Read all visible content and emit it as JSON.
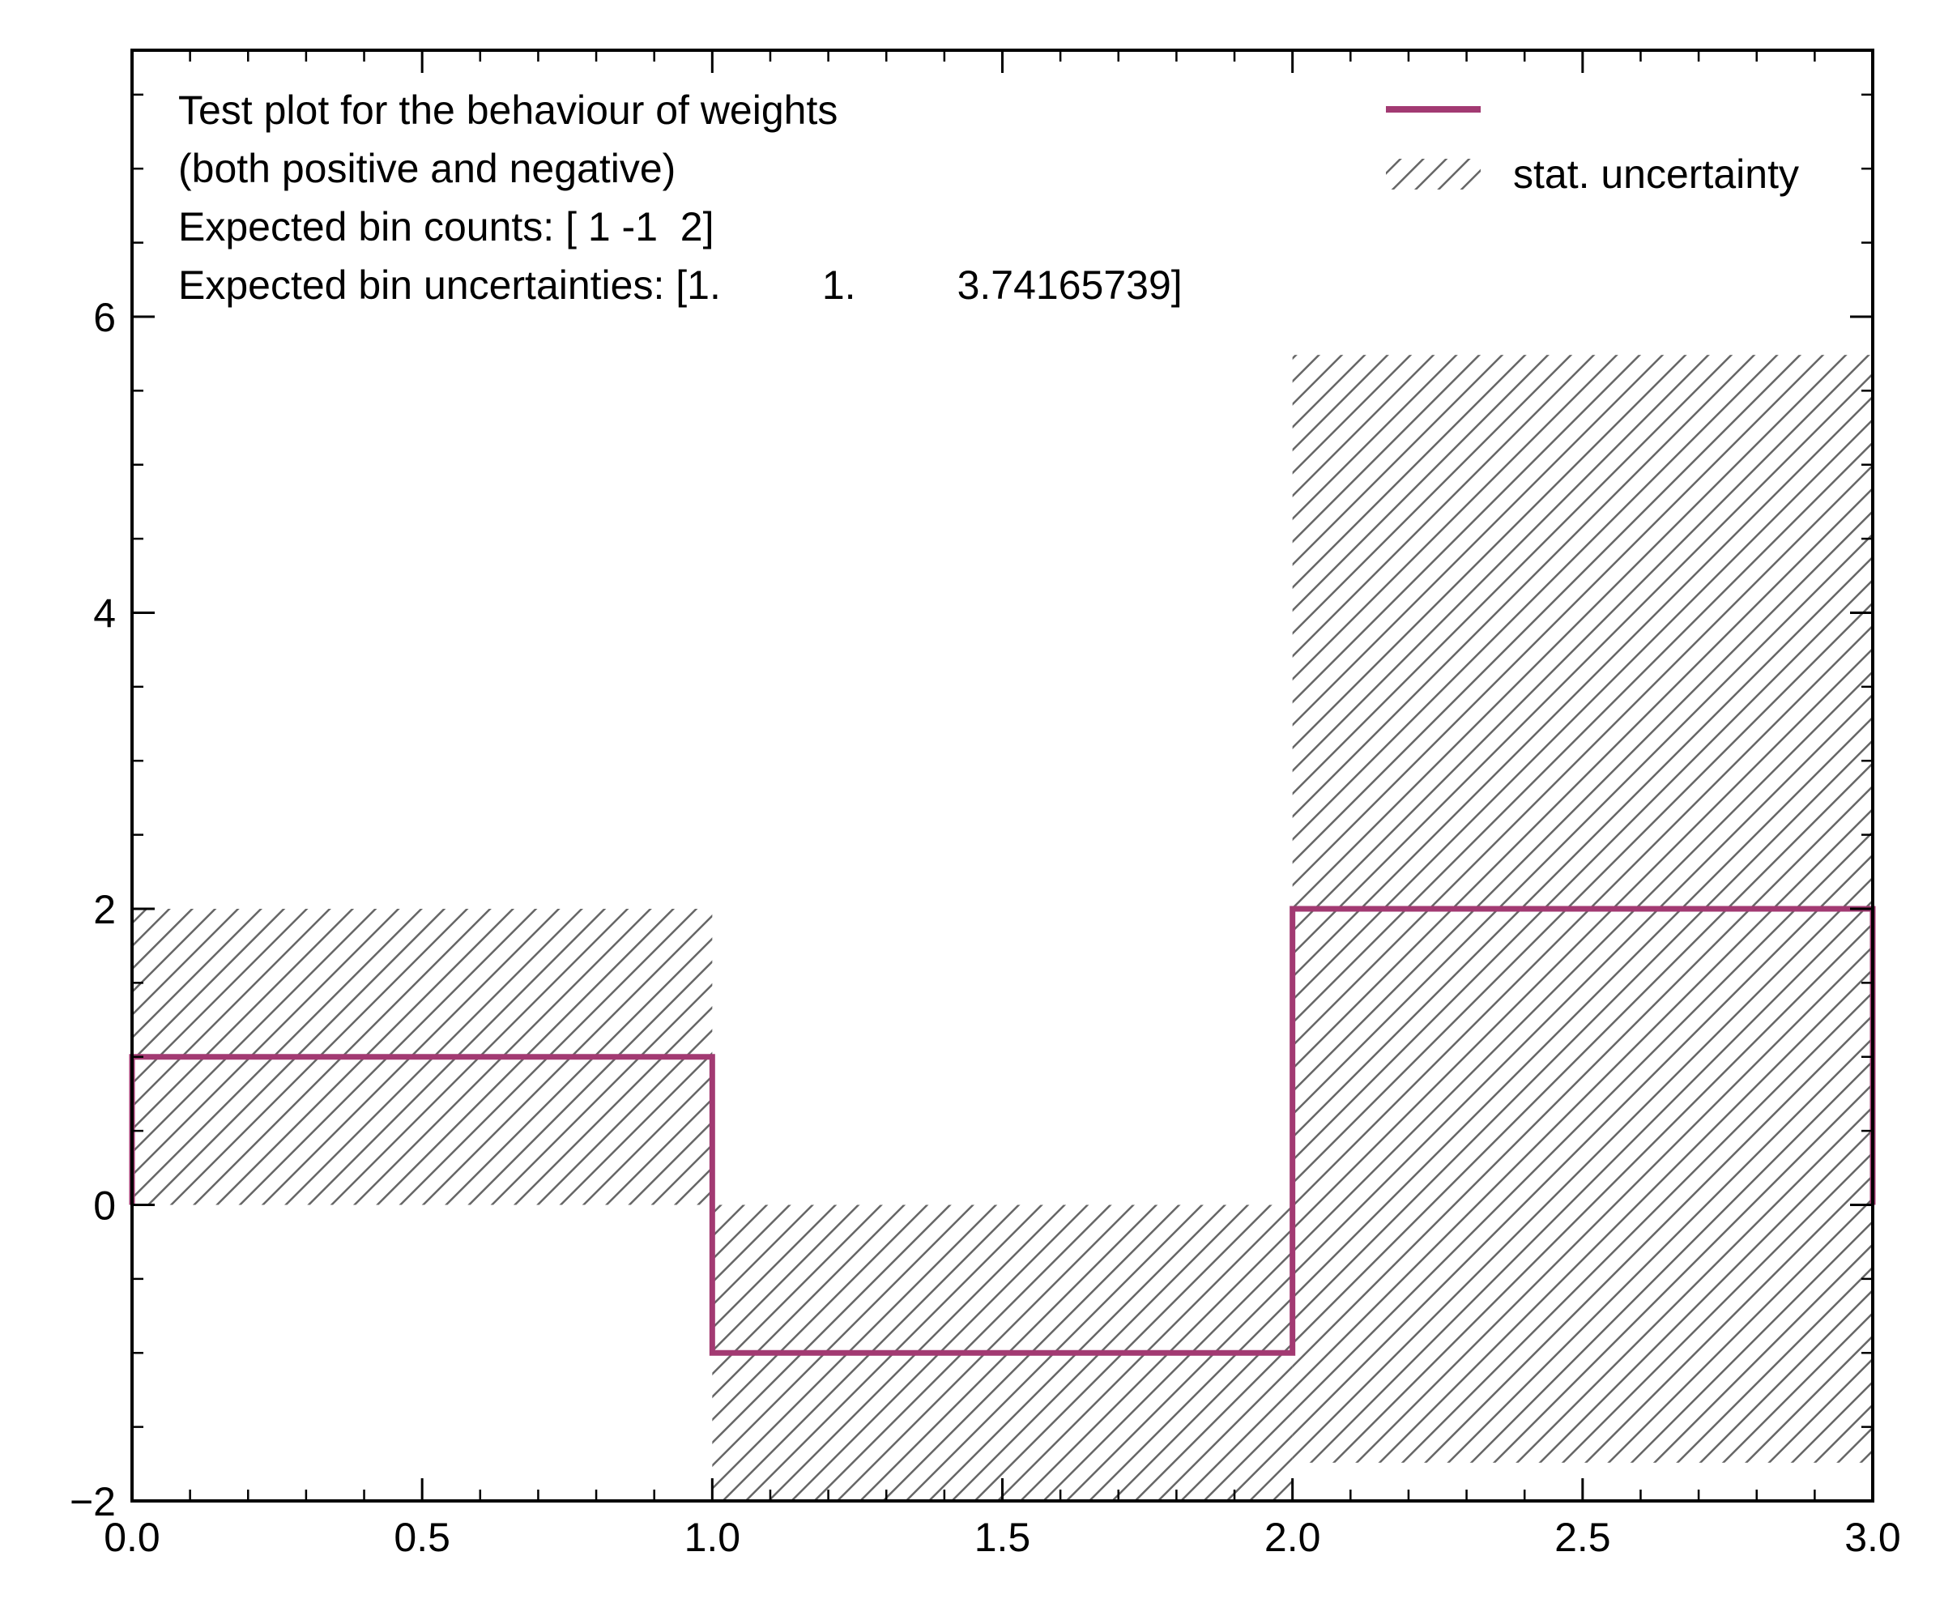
{
  "chart_data": {
    "type": "step",
    "bin_edges": [
      0.0,
      1.0,
      2.0,
      3.0
    ],
    "values": [
      1,
      -1,
      2
    ],
    "uncertainties": [
      1.0,
      1.0,
      3.74165739
    ],
    "xlim": [
      0.0,
      3.0
    ],
    "ylim": [
      -2,
      7.8
    ],
    "x_ticks": [
      0.0,
      0.5,
      1.0,
      1.5,
      2.0,
      2.5,
      3.0
    ],
    "x_tick_labels": [
      "0.0",
      "0.5",
      "1.0",
      "1.5",
      "2.0",
      "2.5",
      "3.0"
    ],
    "y_ticks": [
      -2,
      0,
      2,
      4,
      6
    ],
    "y_tick_labels": [
      "−2",
      "0",
      "2",
      "4",
      "6"
    ],
    "annotation_lines": [
      "Test plot for the behaviour of weights",
      "(both positive and negative)",
      "Expected bin counts: [ 1 -1  2]",
      "Expected bin uncertainties: [1.         1.         3.74165739]"
    ],
    "legend": {
      "placement": "top-right",
      "entries": [
        {
          "kind": "line",
          "label": ""
        },
        {
          "kind": "hatch",
          "label": "stat. uncertainty"
        }
      ]
    },
    "colors": {
      "histogram_line": "#a23a72",
      "hatch": "#666666",
      "axes": "#000000"
    },
    "grid": false
  }
}
